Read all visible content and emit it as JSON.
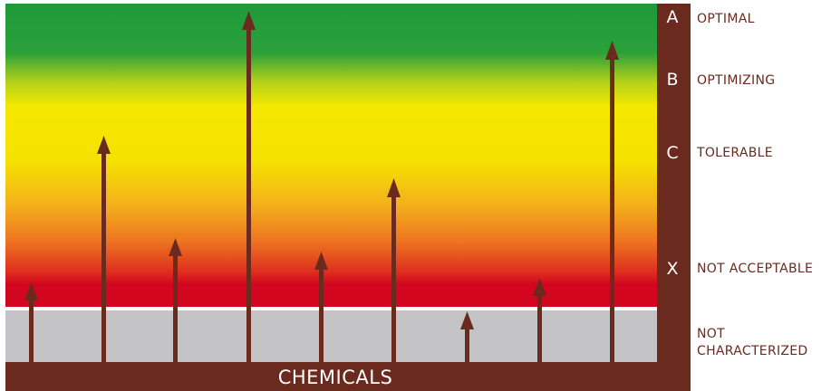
{
  "diagram": {
    "axis_label": "CHEMICALS",
    "levels": [
      {
        "letter": "A",
        "label_lines": [
          "OPTIMAL"
        ]
      },
      {
        "letter": "B",
        "label_lines": [
          "OPTIMIZING"
        ]
      },
      {
        "letter": "C",
        "label_lines": [
          "TOLERABLE"
        ]
      },
      {
        "letter": "X",
        "label_lines": [
          "NOT ACCEPTABLE"
        ]
      },
      {
        "letter": "",
        "label_lines": [
          "NOT",
          "CHARACTERIZED"
        ]
      }
    ],
    "colors": {
      "frame": "#6b2a1e",
      "arrow": "#6b2a1e",
      "green": "#1f9a3a",
      "yellow": "#f5e800",
      "orange": "#ef8a1e",
      "red": "#d2061f",
      "grey": "#c4c4c6",
      "divider": "#ffffff"
    }
  }
}
